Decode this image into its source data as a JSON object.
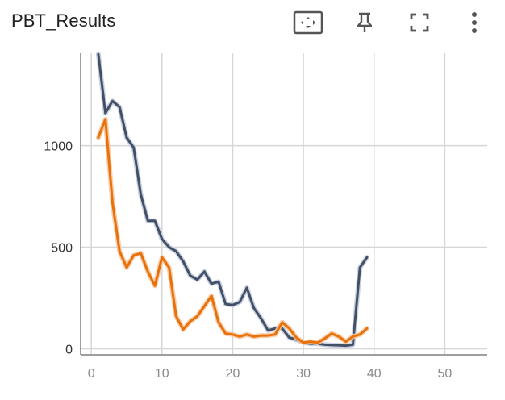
{
  "card": {
    "title": "PBT_Results"
  },
  "toolbar": {
    "fit_icon": "fit-domain-icon",
    "pin_icon": "pin-icon",
    "fullscreen_icon": "fullscreen-icon",
    "more_icon": "more-vert-icon"
  },
  "colors": {
    "series_1": "#425066",
    "series_2": "#e8710a",
    "series_1_smooth_shadow": "#c5cbe0",
    "series_2_smooth_shadow": "#f7c9a4",
    "grid": "#d6d6d6",
    "axis": "#9e9e9e"
  },
  "chart_data": {
    "type": "line",
    "title": "PBT_Results",
    "xlabel": "",
    "ylabel": "",
    "xlim": [
      -1.5,
      56
    ],
    "ylim": [
      -30,
      1455
    ],
    "xticks": [
      0,
      10,
      20,
      30,
      40,
      50
    ],
    "yticks": [
      0,
      500,
      1000
    ],
    "grid": true,
    "legend": "none",
    "series": [
      {
        "x": [
          1,
          2,
          3,
          4,
          5,
          6,
          7,
          8,
          9,
          10,
          11,
          12,
          13,
          14,
          15,
          16,
          17,
          18,
          19,
          20,
          21,
          22,
          23,
          24,
          25,
          26,
          27,
          28,
          29,
          30,
          31,
          32,
          33,
          34,
          35,
          36,
          37,
          38,
          39
        ],
        "y": [
          1450,
          1160,
          1220,
          1190,
          1040,
          990,
          760,
          630,
          630,
          540,
          500,
          480,
          430,
          360,
          340,
          380,
          320,
          330,
          220,
          215,
          230,
          300,
          200,
          150,
          90,
          100,
          100,
          55,
          45,
          30,
          25,
          25,
          20,
          18,
          17,
          15,
          20,
          400,
          450
        ]
      },
      {
        "x": [
          1,
          2,
          3,
          4,
          5,
          6,
          7,
          8,
          9,
          10,
          11,
          12,
          13,
          14,
          15,
          16,
          17,
          18,
          19,
          20,
          21,
          22,
          23,
          24,
          25,
          26,
          27,
          28,
          29,
          30,
          31,
          32,
          33,
          34,
          35,
          36,
          37,
          38,
          39
        ],
        "y": [
          1040,
          1130,
          720,
          480,
          400,
          460,
          470,
          380,
          310,
          450,
          400,
          160,
          95,
          135,
          160,
          210,
          260,
          130,
          75,
          70,
          60,
          70,
          60,
          65,
          65,
          70,
          130,
          100,
          55,
          30,
          35,
          30,
          50,
          75,
          60,
          35,
          60,
          70,
          100
        ]
      }
    ]
  }
}
